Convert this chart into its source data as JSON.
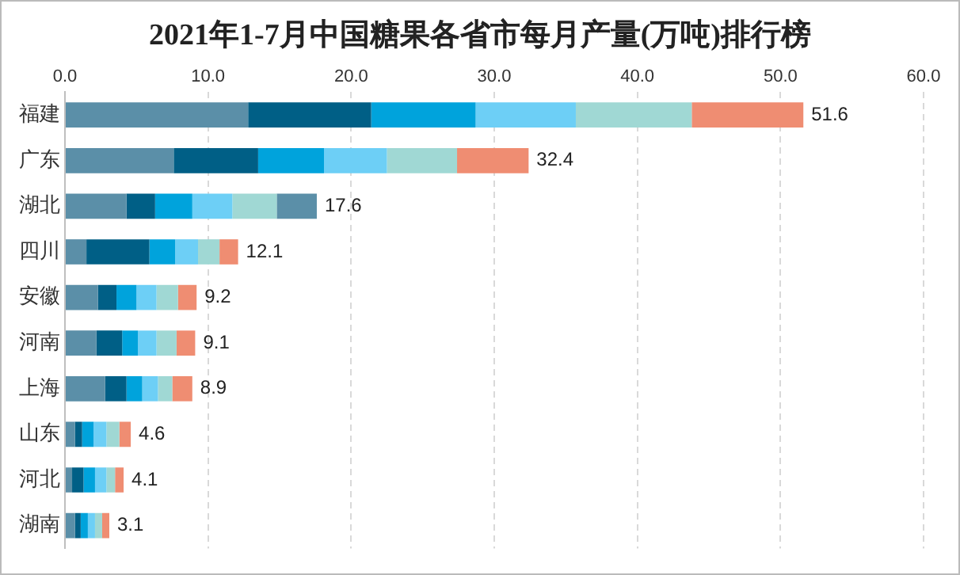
{
  "chart_data": {
    "type": "bar",
    "orientation": "horizontal",
    "stacked": true,
    "title": "2021年1-7月中国糖果各省市每月产量(万吨)排行榜",
    "categories": [
      "福建",
      "广东",
      "湖北",
      "四川",
      "安徽",
      "河南",
      "上海",
      "山东",
      "河北",
      "湖南"
    ],
    "series": [
      {
        "color": "#5b8fa8",
        "values": [
          12.8,
          7.6,
          4.3,
          1.5,
          2.3,
          2.2,
          2.8,
          0.7,
          0.5,
          0.7
        ]
      },
      {
        "color": "#005f86",
        "values": [
          8.6,
          5.9,
          2.0,
          4.4,
          1.3,
          1.8,
          1.5,
          0.5,
          0.8,
          0.4
        ]
      },
      {
        "color": "#00a3dc",
        "values": [
          7.3,
          4.6,
          2.6,
          1.8,
          1.4,
          1.1,
          1.1,
          0.8,
          0.8,
          0.5
        ]
      },
      {
        "color": "#6dcff6",
        "values": [
          7.0,
          4.4,
          2.8,
          1.6,
          1.4,
          1.3,
          1.1,
          0.9,
          0.8,
          0.5
        ]
      },
      {
        "color": "#a0d8d4",
        "values": [
          8.1,
          4.9,
          3.1,
          1.5,
          1.5,
          1.4,
          1.0,
          0.9,
          0.6,
          0.5
        ]
      },
      {
        "color": "#ef8d72",
        "values": [
          7.8,
          5.0,
          null,
          1.3,
          1.3,
          1.3,
          1.4,
          0.8,
          0.6,
          0.5
        ]
      },
      {
        "color": "#5b8fa8",
        "values": [
          null,
          null,
          2.8,
          null,
          null,
          null,
          null,
          null,
          null,
          null
        ]
      }
    ],
    "totals": [
      "51.6",
      "32.4",
      "17.6",
      "12.1",
      "9.2",
      "9.1",
      "8.9",
      "4.6",
      "4.1",
      "3.1"
    ],
    "xlim": [
      0,
      60
    ],
    "xticks": [
      {
        "value": 0,
        "label": "0.0"
      },
      {
        "value": 10,
        "label": "10.0"
      },
      {
        "value": 20,
        "label": "20.0"
      },
      {
        "value": 30,
        "label": "30.0"
      },
      {
        "value": 40,
        "label": "40.0"
      },
      {
        "value": 50,
        "label": "50.0"
      },
      {
        "value": 60,
        "label": "60.0"
      }
    ],
    "grid": "x",
    "legend": false
  }
}
